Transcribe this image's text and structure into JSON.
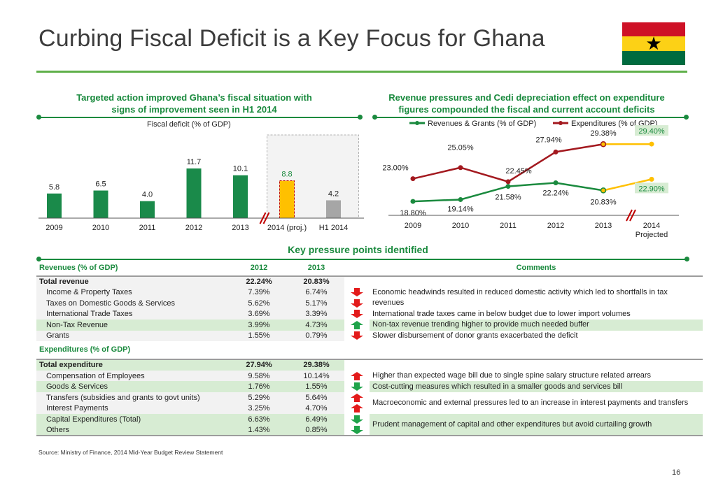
{
  "title": "Curbing Fiscal Deficit is a Key Focus for Ghana",
  "left_panel": {
    "heading_line1": "Targeted action improved Ghana’s fiscal situation with",
    "heading_line2": "signs of improvement seen in H1 2014",
    "chart_title": "Fiscal deficit (% of GDP)"
  },
  "right_panel": {
    "heading_line1": "Revenue pressures and Cedi depreciation effect on expenditure",
    "heading_line2": "figures compounded the fiscal and current account deficits"
  },
  "chart_data": [
    {
      "type": "bar",
      "title": "Fiscal deficit (% of GDP)",
      "categories": [
        "2009",
        "2010",
        "2011",
        "2012",
        "2013",
        "2014 (proj.)",
        "H1 2014"
      ],
      "values": [
        5.8,
        6.5,
        4.0,
        11.7,
        10.1,
        8.8,
        4.2
      ],
      "value_labels": [
        "5.8",
        "6.5",
        "4.0",
        "11.7",
        "10.1",
        "8.8",
        "4.2"
      ],
      "colors": [
        "#1a8a4a",
        "#1a8a4a",
        "#1a8a4a",
        "#1a8a4a",
        "#1a8a4a",
        "#ffc000",
        "#a6a6a6"
      ],
      "ylim": [
        0,
        13
      ],
      "highlight_box": [
        "2014 (proj.)",
        "H1 2014"
      ]
    },
    {
      "type": "line",
      "x": [
        "2009",
        "2010",
        "2011",
        "2012",
        "2013",
        "2014"
      ],
      "x_sublabels": [
        "",
        "",
        "",
        "",
        "",
        "Projected"
      ],
      "series": [
        {
          "name": "Revenues & Grants (% of GDP)",
          "color": "#1a8a3e",
          "values": [
            18.8,
            19.14,
            21.58,
            22.24,
            20.83,
            null
          ],
          "labels": [
            "18.80%",
            "19.14%",
            "21.58%",
            "22.24%",
            "20.83%",
            ""
          ],
          "projected": {
            "values": [
              20.83,
              22.9
            ],
            "color": "#ffc000",
            "label": "22.90%"
          }
        },
        {
          "name": "Expenditures (% of GDP)",
          "color": "#a3191f",
          "values": [
            23.0,
            25.05,
            22.45,
            27.94,
            29.38,
            null
          ],
          "labels": [
            "23.00%",
            "25.05%",
            "22.45%",
            "27.94%",
            "29.38%",
            ""
          ],
          "projected": {
            "values": [
              29.38,
              29.4
            ],
            "color": "#ffc000",
            "label": "29.40%"
          }
        }
      ],
      "ylim": [
        17,
        31
      ],
      "legend": "top"
    }
  ],
  "key_points_title": "Key pressure points identified",
  "table": {
    "revenue_header": {
      "label": "Revenues (% of GDP)",
      "y2012": "2012",
      "y2013": "2013",
      "comments": "Comments"
    },
    "revenue_rows": [
      {
        "label": "Total revenue",
        "v2012": "22.24%",
        "v2013": "20.83%",
        "arrow": "",
        "total": true
      },
      {
        "label": "Income & Property Taxes",
        "v2012": "7.39%",
        "v2013": "6.74%",
        "arrow": "down"
      },
      {
        "label": "Taxes on Domestic Goods & Services",
        "v2012": "5.62%",
        "v2013": "5.17%",
        "arrow": "down"
      },
      {
        "label": "International Trade Taxes",
        "v2012": "3.69%",
        "v2013": "3.39%",
        "arrow": "down"
      },
      {
        "label": "Non-Tax Revenue",
        "v2012": "3.99%",
        "v2013": "4.73%",
        "arrow": "up-green"
      },
      {
        "label": "Grants",
        "v2012": "1.55%",
        "v2013": "0.79%",
        "arrow": "down"
      }
    ],
    "revenue_comments": [
      "Economic headwinds resulted in reduced domestic activity which led to shortfalls in tax revenues",
      "International trade taxes came in below budget due to lower import volumes",
      "Non-tax revenue trending higher to provide much needed buffer",
      "Slower disbursement of  donor grants exacerbated the deficit"
    ],
    "expenditure_header": {
      "label": "Expenditures (% of GDP)"
    },
    "expenditure_rows": [
      {
        "label": "Total expenditure",
        "v2012": "27.94%",
        "v2013": "29.38%",
        "arrow": "",
        "total": true
      },
      {
        "label": "Compensation of Employees",
        "v2012": "9.58%",
        "v2013": "10.14%",
        "arrow": "up-red"
      },
      {
        "label": "Goods & Services",
        "v2012": "1.76%",
        "v2013": "1.55%",
        "arrow": "down-green"
      },
      {
        "label": "Transfers (subsidies and grants to govt units)",
        "v2012": "5.29%",
        "v2013": "5.64%",
        "arrow": "up-red"
      },
      {
        "label": "Interest Payments",
        "v2012": "3.25%",
        "v2013": "4.70%",
        "arrow": "up-red"
      },
      {
        "label": "Capital Expenditures (Total)",
        "v2012": "6.63%",
        "v2013": "6.49%",
        "arrow": "down-green"
      },
      {
        "label": "Others",
        "v2012": "1.43%",
        "v2013": "0.85%",
        "arrow": "down-green"
      }
    ],
    "expenditure_comments": [
      "Higher than expected wage bill due to single spine salary structure related arrears",
      "Cost-cutting measures which resulted in a smaller goods and services bill",
      "Macroeconomic and external pressures led to an increase in interest payments and transfers",
      "Prudent management of capital and other expenditures but avoid curtailing growth"
    ]
  },
  "source": "Source: Ministry of Finance, 2014 Mid-Year Budget Review Statement",
  "page_number": "16",
  "colors": {
    "green": "#1a8a3e",
    "red": "#e31b1b",
    "yellow": "#ffc000",
    "grey": "#a6a6a6",
    "shade": "#d7ecd3"
  }
}
